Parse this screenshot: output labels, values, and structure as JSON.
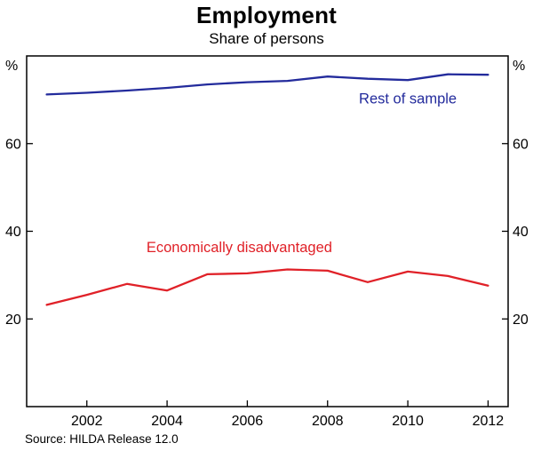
{
  "header": {
    "title": "Employment",
    "subtitle": "Share of persons"
  },
  "footer": {
    "source": "Source: HILDA Release 12.0"
  },
  "chart_data": {
    "type": "line",
    "title": "Employment",
    "subtitle": "Share of persons",
    "unit_label": "%",
    "x": [
      2001,
      2002,
      2003,
      2004,
      2005,
      2006,
      2007,
      2008,
      2009,
      2010,
      2011,
      2012
    ],
    "series": [
      {
        "name": "Rest of sample",
        "color": "#232b9c",
        "values": [
          71.2,
          71.6,
          72.1,
          72.7,
          73.5,
          74.0,
          74.3,
          75.3,
          74.8,
          74.5,
          75.8,
          75.7
        ]
      },
      {
        "name": "Economically disadvantaged",
        "color": "#e02128",
        "values": [
          23.2,
          25.5,
          28.0,
          26.5,
          30.2,
          30.4,
          31.3,
          31.0,
          28.4,
          30.8,
          29.8,
          27.6
        ]
      }
    ],
    "xlim": [
      2000.5,
      2012.5
    ],
    "ylim": [
      0,
      80
    ],
    "yticks": [
      20,
      40,
      60
    ],
    "xticks": [
      2002,
      2004,
      2006,
      2008,
      2010,
      2012
    ],
    "grid": false,
    "frame": true,
    "annotations": [
      {
        "text": "Rest of sample",
        "x": 2010.0,
        "y": 69.2,
        "color": "#232b9c"
      },
      {
        "text": "Economically disadvantaged",
        "x": 2005.8,
        "y": 35.2,
        "color": "#e02128"
      }
    ]
  }
}
